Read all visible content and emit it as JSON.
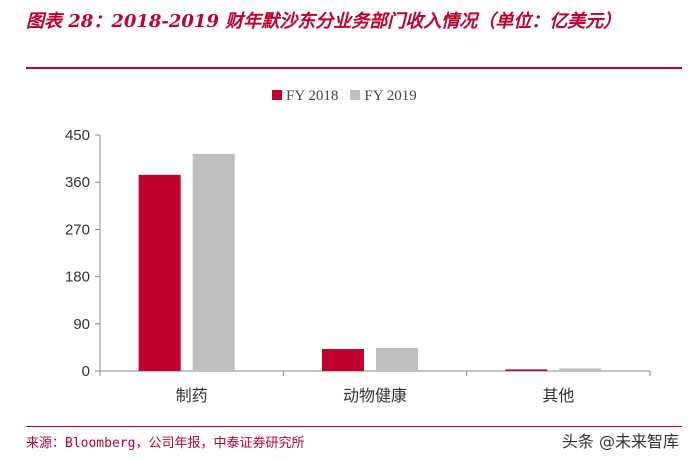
{
  "title": "图表 28：2018-2019 财年默沙东分业务部门收入情况（单位：亿美元）",
  "source": "来源：Bloomberg，公司年报，中泰证券研究所",
  "watermark": "头条 @未来智库",
  "colors": {
    "accent": "#c0002e",
    "fy2018": "#c0002e",
    "fy2019": "#bfbfbf"
  },
  "chart_data": {
    "type": "bar",
    "categories": [
      "制药",
      "动物健康",
      "其他"
    ],
    "series": [
      {
        "name": "FY 2018",
        "values": [
          374,
          42,
          3
        ]
      },
      {
        "name": "FY 2019",
        "values": [
          414,
          44,
          5
        ]
      }
    ],
    "ylim": [
      0,
      450
    ],
    "yticks": [
      "0",
      "90",
      "180",
      "270",
      "360",
      "450"
    ],
    "grid": false,
    "legend": "top"
  }
}
